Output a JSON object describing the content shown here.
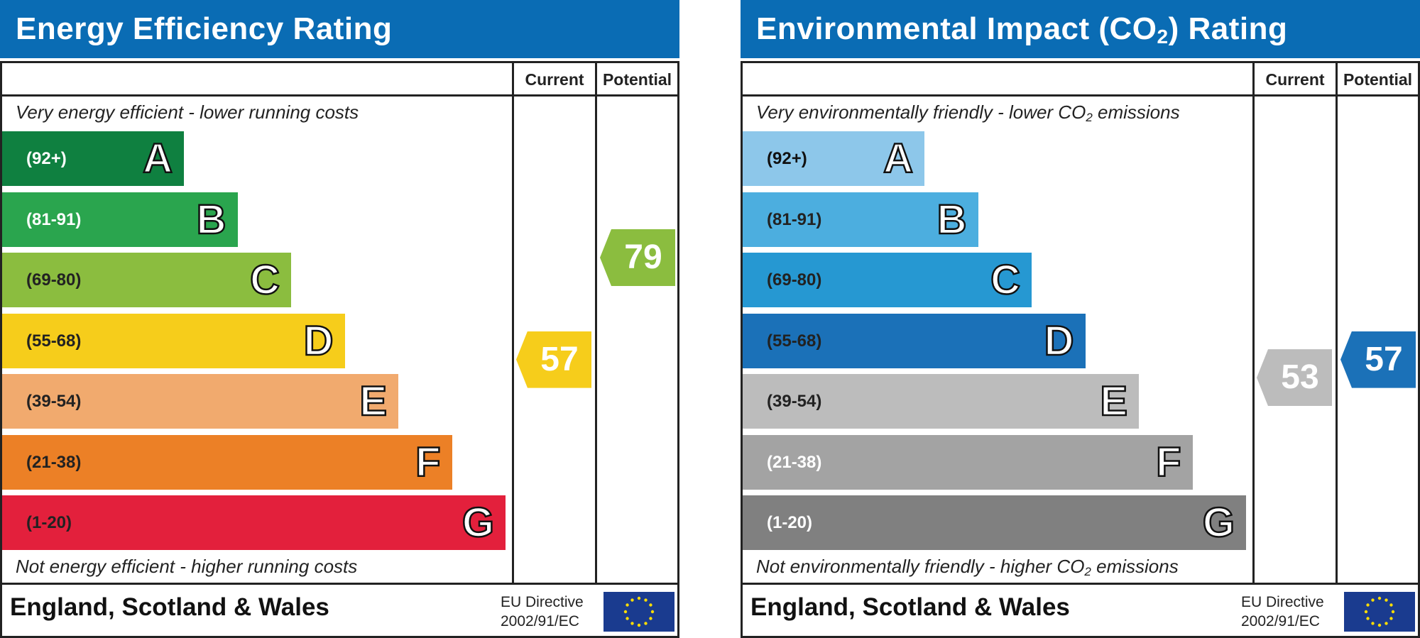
{
  "chart_data": [
    {
      "type": "bar",
      "title": "Energy Efficiency Rating",
      "columns": [
        "Current",
        "Potential"
      ],
      "top_caption": "Very energy efficient - lower running costs",
      "bottom_caption": "Not energy efficient - higher running costs",
      "bands": [
        {
          "range": "(92+)",
          "letter": "A",
          "color": "#0f8040",
          "range_color": "#ffffff"
        },
        {
          "range": "(81-91)",
          "letter": "B",
          "color": "#2aa54e",
          "range_color": "#ffffff"
        },
        {
          "range": "(69-80)",
          "letter": "C",
          "color": "#8bbd3f",
          "range_color": "#222222"
        },
        {
          "range": "(55-68)",
          "letter": "D",
          "color": "#f6cd1b",
          "range_color": "#222222"
        },
        {
          "range": "(39-54)",
          "letter": "E",
          "color": "#f1aa6e",
          "range_color": "#222222"
        },
        {
          "range": "(21-38)",
          "letter": "F",
          "color": "#ec8026",
          "range_color": "#222222"
        },
        {
          "range": "(1-20)",
          "letter": "G",
          "color": "#e3203c",
          "range_color": "#222222"
        }
      ],
      "current": {
        "value": 57,
        "color": "#f6cd1b"
      },
      "potential": {
        "value": 79,
        "color": "#8bbd3f"
      },
      "footer": "England, Scotland & Wales",
      "directive_line1": "EU Directive",
      "directive_line2": "2002/91/EC"
    },
    {
      "type": "bar",
      "title": "Environmental Impact (CO",
      "title_sub": "2",
      "title_end": ") Rating",
      "columns": [
        "Current",
        "Potential"
      ],
      "top_caption": "Very environmentally friendly - lower CO",
      "top_caption_sub": "2",
      "top_caption_end": " emissions",
      "bottom_caption": "Not environmentally friendly - higher CO",
      "bottom_caption_sub": "2",
      "bottom_caption_end": " emissions",
      "bands": [
        {
          "range": "(92+)",
          "letter": "A",
          "color": "#8dc7ea",
          "range_color": "#111111"
        },
        {
          "range": "(81-91)",
          "letter": "B",
          "color": "#4caedf",
          "range_color": "#222222"
        },
        {
          "range": "(69-80)",
          "letter": "C",
          "color": "#2698d2",
          "range_color": "#222222"
        },
        {
          "range": "(55-68)",
          "letter": "D",
          "color": "#1b71b8",
          "range_color": "#222222"
        },
        {
          "range": "(39-54)",
          "letter": "E",
          "color": "#bcbcbc",
          "range_color": "#222222"
        },
        {
          "range": "(21-38)",
          "letter": "F",
          "color": "#a3a3a3",
          "range_color": "#ffffff"
        },
        {
          "range": "(1-20)",
          "letter": "G",
          "color": "#808080",
          "range_color": "#ffffff"
        }
      ],
      "current": {
        "value": 53,
        "color": "#bcbcbc"
      },
      "potential": {
        "value": 57,
        "color": "#1b71b8"
      },
      "footer": "England, Scotland & Wales",
      "directive_line1": "EU Directive",
      "directive_line2": "2002/91/EC"
    }
  ]
}
